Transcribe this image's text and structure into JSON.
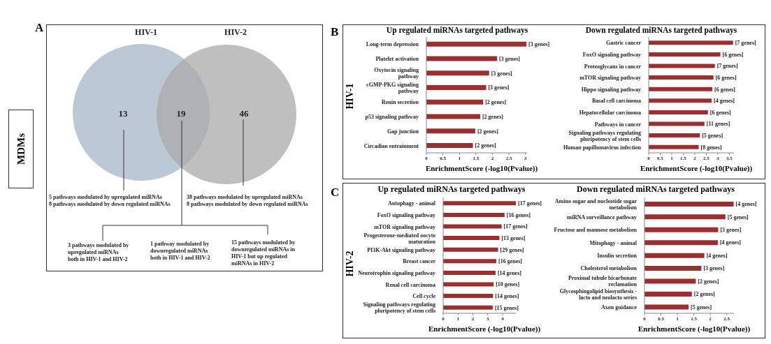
{
  "chart_data": [
    {
      "type": "other",
      "annotations": [
        "A",
        "MDMs",
        "HIV-1",
        "HIV-2",
        "13",
        "19",
        "46",
        "5 pathways modulated by upregulated miRNAs\n8 pathways modulated by down regulated miRNAs",
        "38 pathways modulated by upregulated miRNAs\n8 pathways modulated by down regulated miRNAs",
        "3 pathways modulated by\nupregulated miRNAs\nboth in HIV-1 and HIV-2",
        "1 pathway modulated by\ndownregulated miRNAs\nboth in HIV-1 and HIV-2",
        "15 pathways modulated by\ndownregulated miRNAs in\nHIV-1 but up regulated\nmiRNAs in HIV-2"
      ]
    },
    {
      "type": "bar",
      "orientation": "horizontal",
      "title": "Up regulated miRNAs targeted pathways",
      "xlabel": "EnrichmentScore (-log10(Pvalue))",
      "categories": [
        "Long-term depression",
        "Platelet activation",
        "Oxytocin signaling pathway",
        "cGMP-PKG signaling pathway",
        "Renin secretion",
        "p53 signaling pathway",
        "Gap junction",
        "Circadian entrainment"
      ],
      "values": [
        3.03,
        2.14,
        1.9,
        1.81,
        1.72,
        1.63,
        1.48,
        1.41
      ],
      "color": "#9b2f2f",
      "annotations": [
        "B",
        "HIV-1",
        {
          "text": "[3 genes]",
          "y": "Long-term depression",
          "x": 3.03
        },
        {
          "text": "[3 genes]",
          "y": "Platelet activation",
          "x": 2.14
        },
        {
          "text": "[3 genes]",
          "y": "Oxytocin signaling pathway",
          "x": 1.9
        },
        {
          "text": "[3 genes]",
          "y": "cGMP-PKG signaling pathway",
          "x": 1.81
        },
        {
          "text": "[2 genes]",
          "y": "Renin secretion",
          "x": 1.72
        },
        {
          "text": "[2 genes]",
          "y": "p53 signaling pathway",
          "x": 1.63
        },
        {
          "text": "[2 genes]",
          "y": "Gap junction",
          "x": 1.48
        },
        {
          "text": "[2 genes]",
          "y": "Circadian entrainment",
          "x": 1.41
        }
      ],
      "xlim": [
        0,
        3.05
      ],
      "xticks": [
        0,
        0.5,
        1,
        1.5,
        2,
        2.5,
        3
      ]
    },
    {
      "type": "bar",
      "orientation": "horizontal",
      "title": "Down regulated miRNAs targeted pathways",
      "xlabel": "EnrichmentScore (-log10(Pvalue))",
      "categories": [
        "Gastric cancer",
        "FoxO signaling pathway",
        "Proteoglycans in cancer",
        "mTOR signaling pathway",
        "Hippo signaling pathway",
        "Basal cell carcinoma",
        "Hepatocellular carcinoma",
        "Pathways in cancer",
        "Signaling pathways regulating pluripotency of stem cells",
        "Human papillomavirus infection"
      ],
      "values": [
        3.66,
        3.11,
        2.87,
        2.81,
        2.76,
        2.73,
        2.57,
        2.42,
        2.22,
        2.17
      ],
      "color": "#9b2f2f",
      "annotations": [
        {
          "text": "[7 genes]",
          "y": "Gastric cancer",
          "x": 3.66
        },
        {
          "text": "[6 genes]",
          "y": "FoxO signaling pathway",
          "x": 3.11
        },
        {
          "text": "[7 genes]",
          "y": "Proteoglycans in cancer",
          "x": 2.87
        },
        {
          "text": "[6 genes]",
          "y": "mTOR signaling pathway",
          "x": 2.81
        },
        {
          "text": "[6 genes]",
          "y": "Hippo signaling pathway",
          "x": 2.76
        },
        {
          "text": "[4 genes]",
          "y": "Basal cell carcinoma",
          "x": 2.73
        },
        {
          "text": "[6 genes]",
          "y": "Hepatocellular carcinoma",
          "x": 2.57
        },
        {
          "text": "[11 genes]",
          "y": "Pathways in cancer",
          "x": 2.42
        },
        {
          "text": "[5 genes]",
          "y": "Signaling pathways regulating pluripotency of stem cells",
          "x": 2.22
        },
        {
          "text": "[8 genes]",
          "y": "Human papillomavirus infection",
          "x": 2.17
        }
      ],
      "xlim": [
        0,
        3.7
      ],
      "xticks": [
        0,
        0.5,
        1,
        1.5,
        2,
        2.5,
        3,
        3.5
      ]
    },
    {
      "type": "bar",
      "orientation": "horizontal",
      "title": "Up regulated miRNAs targeted pathways",
      "xlabel": "EnrichmentScore (-log10(Pvalue))",
      "categories": [
        "Autophagy - animal",
        "FoxO signaling pathway",
        "mTOR signaling pathway",
        "Progesterone-mediated oocyte maturation",
        "PI3K-Akt signaling pathway",
        "Breast cancer",
        "Neurotrophin signaling pathway",
        "Renal cell carcinoma",
        "Cell cycle",
        "Signaling pathways regulating pluripotency of stem cells"
      ],
      "values": [
        4.9,
        4.14,
        3.94,
        3.79,
        3.7,
        3.58,
        3.53,
        3.4,
        3.36,
        3.34
      ],
      "color": "#9b2f2f",
      "annotations": [
        "C",
        "HIV-2",
        {
          "text": "[17 genes]",
          "y": "Autophagy - animal",
          "x": 4.9
        },
        {
          "text": "[16 genes]",
          "y": "FoxO signaling pathway",
          "x": 4.14
        },
        {
          "text": "[17 genes]",
          "y": "mTOR signaling pathway",
          "x": 3.94
        },
        {
          "text": "[13 genes]",
          "y": "Progesterone-mediated oocyte maturation",
          "x": 3.79
        },
        {
          "text": "[29 genes]",
          "y": "PI3K-Akt signaling pathway",
          "x": 3.7
        },
        {
          "text": "[16 genes]",
          "y": "Breast cancer",
          "x": 3.58
        },
        {
          "text": "[14 genes]",
          "y": "Neurotrophin signaling pathway",
          "x": 3.53
        },
        {
          "text": "[10 genes]",
          "y": "Renal cell carcinoma",
          "x": 3.4
        },
        {
          "text": "[14 genes]",
          "y": "Cell cycle",
          "x": 3.36
        },
        {
          "text": "[15 genes]",
          "y": "Signaling pathways regulating pluripotency of stem cells",
          "x": 3.34
        }
      ],
      "xlim": [
        0,
        4.9
      ],
      "xticks": [
        0,
        1,
        2,
        3,
        4
      ]
    },
    {
      "type": "bar",
      "orientation": "horizontal",
      "title": "Down regulated miRNAs targeted pathways",
      "xlabel": "EnrichmentScore (-log10(Pvalue))",
      "categories": [
        "Amino sugar and nucleotide sugar metabolism",
        "miRNA surveillance pathway",
        "Fructose and mannose metabolism",
        "Mitophagy - animal",
        "Insulin secretion",
        "Cholesterol metabolism",
        "Proximal tubule bicarbonate reclamation",
        "Glycosphingolipid biosynthesis - lacto and neolacto series",
        "Axon guidance"
      ],
      "values": [
        2.71,
        2.46,
        2.24,
        2.23,
        1.82,
        1.73,
        1.56,
        1.44,
        1.34
      ],
      "color": "#9b2f2f",
      "annotations": [
        {
          "text": "[4 genes]",
          "y": "Amino sugar and nucleotide sugar metabolism",
          "x": 2.71
        },
        {
          "text": "[5 genes]",
          "y": "miRNA surveillance pathway",
          "x": 2.46
        },
        {
          "text": "[3 genes]",
          "y": "Fructose and mannose metabolism",
          "x": 2.24
        },
        {
          "text": "[4 genes]",
          "y": "Mitophagy - animal",
          "x": 2.23
        },
        {
          "text": "[4 genes]",
          "y": "Insulin secretion",
          "x": 1.82
        },
        {
          "text": "[3 genes]",
          "y": "Cholesterol metabolism",
          "x": 1.73
        },
        {
          "text": "[2 genes]",
          "y": "Proximal tubule bicarbonate reclamation",
          "x": 1.56
        },
        {
          "text": "[2 genes]",
          "y": "Glycosphingolipid biosynthesis - lacto and neolacto series",
          "x": 1.44
        },
        {
          "text": "[5 genes]",
          "y": "Axon guidance",
          "x": 1.34
        }
      ],
      "xlim": [
        0,
        2.72
      ],
      "xticks": [
        0,
        0.5,
        1,
        1.5,
        2,
        2.5
      ]
    }
  ]
}
